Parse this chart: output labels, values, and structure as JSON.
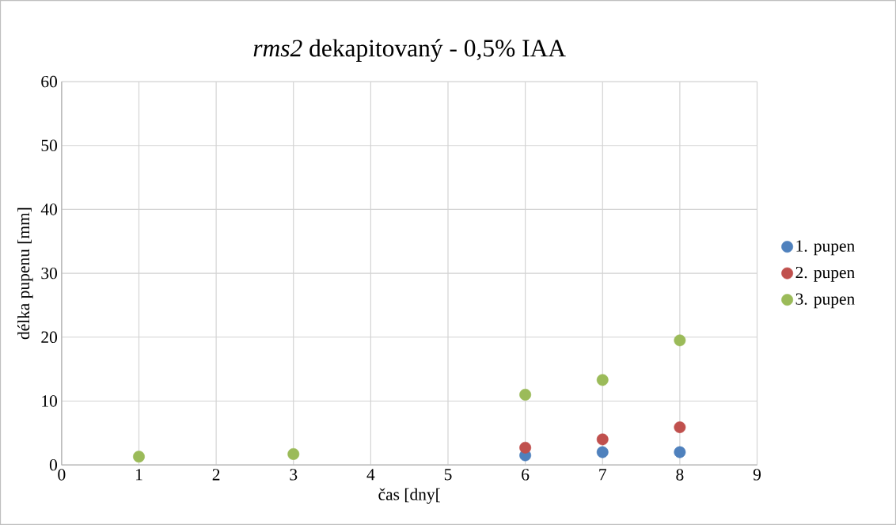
{
  "chart_data": {
    "type": "scatter",
    "title": "*rms2* dekapitovaný - 0,5% IAA",
    "xlabel": "čas [dny[",
    "ylabel": "délka pupenu [mm]",
    "x": [
      1,
      3,
      6,
      7,
      8
    ],
    "series": [
      {
        "name": "1. pupen",
        "color": "#4f81bd",
        "values": [
          null,
          null,
          1.5,
          2.0,
          2.0
        ]
      },
      {
        "name": "2. pupen",
        "color": "#c0504d",
        "values": [
          null,
          null,
          2.7,
          4.0,
          5.9
        ]
      },
      {
        "name": "3. pupen",
        "color": "#9bbb59",
        "values": [
          1.3,
          1.7,
          11.0,
          13.3,
          19.5
        ]
      }
    ],
    "xlim": [
      0,
      9
    ],
    "ylim": [
      0,
      60
    ],
    "xticks": [
      0,
      1,
      2,
      3,
      4,
      5,
      6,
      7,
      8,
      9
    ],
    "yticks": [
      0,
      10,
      20,
      30,
      40,
      50,
      60
    ],
    "grid": true,
    "legend": "right",
    "marker": "circle"
  }
}
